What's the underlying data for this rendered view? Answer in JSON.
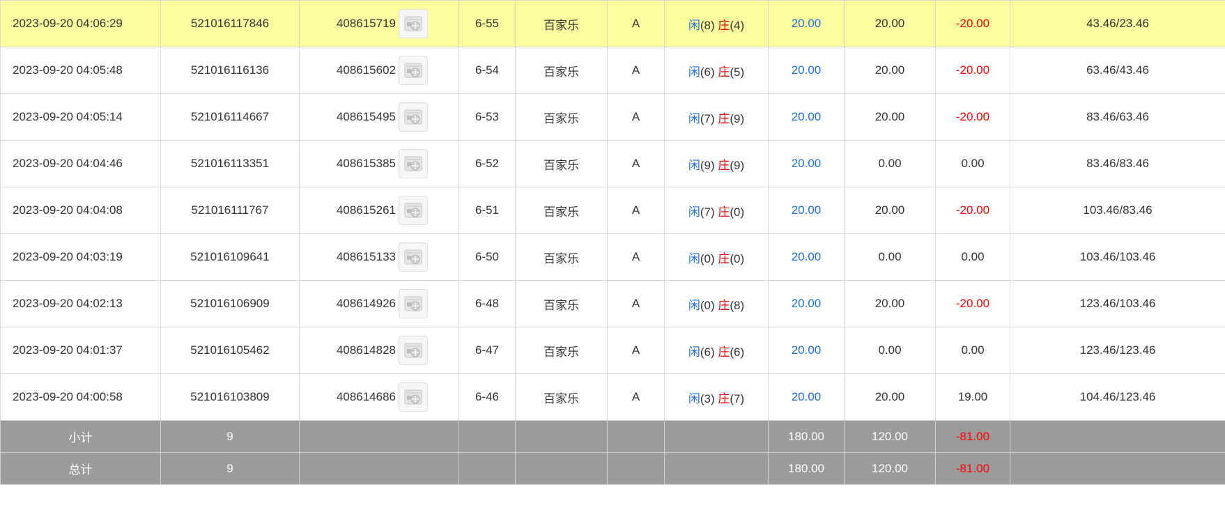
{
  "colors": {
    "highlight_row": "#fcfc9f",
    "summary_bg": "#9b9b9b",
    "player_blue": "#1a6fe0",
    "negative_red": "#ff0000"
  },
  "icons": {
    "video": "video-replay-icon"
  },
  "rows": [
    {
      "time": "2023-09-20 04:06:29",
      "order_no": "521016117846",
      "game_no": "408615719",
      "shoe": "6-55",
      "game": "百家乐",
      "table": "A",
      "player_label": "闲",
      "player_score": "(8)",
      "banker_label": "庄",
      "banker_score": "(4)",
      "bet": "20.00",
      "valid_bet": "20.00",
      "win_loss": "-20.00",
      "win_loss_negative": true,
      "balance": "43.46/23.46",
      "highlight": true
    },
    {
      "time": "2023-09-20 04:05:48",
      "order_no": "521016116136",
      "game_no": "408615602",
      "shoe": "6-54",
      "game": "百家乐",
      "table": "A",
      "player_label": "闲",
      "player_score": "(6)",
      "banker_label": "庄",
      "banker_score": "(5)",
      "bet": "20.00",
      "valid_bet": "20.00",
      "win_loss": "-20.00",
      "win_loss_negative": true,
      "balance": "63.46/43.46",
      "highlight": false
    },
    {
      "time": "2023-09-20 04:05:14",
      "order_no": "521016114667",
      "game_no": "408615495",
      "shoe": "6-53",
      "game": "百家乐",
      "table": "A",
      "player_label": "闲",
      "player_score": "(7)",
      "banker_label": "庄",
      "banker_score": "(9)",
      "bet": "20.00",
      "valid_bet": "20.00",
      "win_loss": "-20.00",
      "win_loss_negative": true,
      "balance": "83.46/63.46",
      "highlight": false
    },
    {
      "time": "2023-09-20 04:04:46",
      "order_no": "521016113351",
      "game_no": "408615385",
      "shoe": "6-52",
      "game": "百家乐",
      "table": "A",
      "player_label": "闲",
      "player_score": "(9)",
      "banker_label": "庄",
      "banker_score": "(9)",
      "bet": "20.00",
      "valid_bet": "0.00",
      "win_loss": "0.00",
      "win_loss_negative": false,
      "balance": "83.46/83.46",
      "highlight": false
    },
    {
      "time": "2023-09-20 04:04:08",
      "order_no": "521016111767",
      "game_no": "408615261",
      "shoe": "6-51",
      "game": "百家乐",
      "table": "A",
      "player_label": "闲",
      "player_score": "(7)",
      "banker_label": "庄",
      "banker_score": "(0)",
      "bet": "20.00",
      "valid_bet": "20.00",
      "win_loss": "-20.00",
      "win_loss_negative": true,
      "balance": "103.46/83.46",
      "highlight": false
    },
    {
      "time": "2023-09-20 04:03:19",
      "order_no": "521016109641",
      "game_no": "408615133",
      "shoe": "6-50",
      "game": "百家乐",
      "table": "A",
      "player_label": "闲",
      "player_score": "(0)",
      "banker_label": "庄",
      "banker_score": "(0)",
      "bet": "20.00",
      "valid_bet": "0.00",
      "win_loss": "0.00",
      "win_loss_negative": false,
      "balance": "103.46/103.46",
      "highlight": false
    },
    {
      "time": "2023-09-20 04:02:13",
      "order_no": "521016106909",
      "game_no": "408614926",
      "shoe": "6-48",
      "game": "百家乐",
      "table": "A",
      "player_label": "闲",
      "player_score": "(0)",
      "banker_label": "庄",
      "banker_score": "(8)",
      "bet": "20.00",
      "valid_bet": "20.00",
      "win_loss": "-20.00",
      "win_loss_negative": true,
      "balance": "123.46/103.46",
      "highlight": false
    },
    {
      "time": "2023-09-20 04:01:37",
      "order_no": "521016105462",
      "game_no": "408614828",
      "shoe": "6-47",
      "game": "百家乐",
      "table": "A",
      "player_label": "闲",
      "player_score": "(6)",
      "banker_label": "庄",
      "banker_score": "(6)",
      "bet": "20.00",
      "valid_bet": "0.00",
      "win_loss": "0.00",
      "win_loss_negative": false,
      "balance": "123.46/123.46",
      "highlight": false
    },
    {
      "time": "2023-09-20 04:00:58",
      "order_no": "521016103809",
      "game_no": "408614686",
      "shoe": "6-46",
      "game": "百家乐",
      "table": "A",
      "player_label": "闲",
      "player_score": "(3)",
      "banker_label": "庄",
      "banker_score": "(7)",
      "bet": "20.00",
      "valid_bet": "20.00",
      "win_loss": "19.00",
      "win_loss_negative": false,
      "balance": "104.46/123.46",
      "highlight": false
    }
  ],
  "summary": [
    {
      "label": "小计",
      "count": "9",
      "bet": "180.00",
      "valid_bet": "120.00",
      "win_loss": "-81.00"
    },
    {
      "label": "总计",
      "count": "9",
      "bet": "180.00",
      "valid_bet": "120.00",
      "win_loss": "-81.00"
    }
  ]
}
